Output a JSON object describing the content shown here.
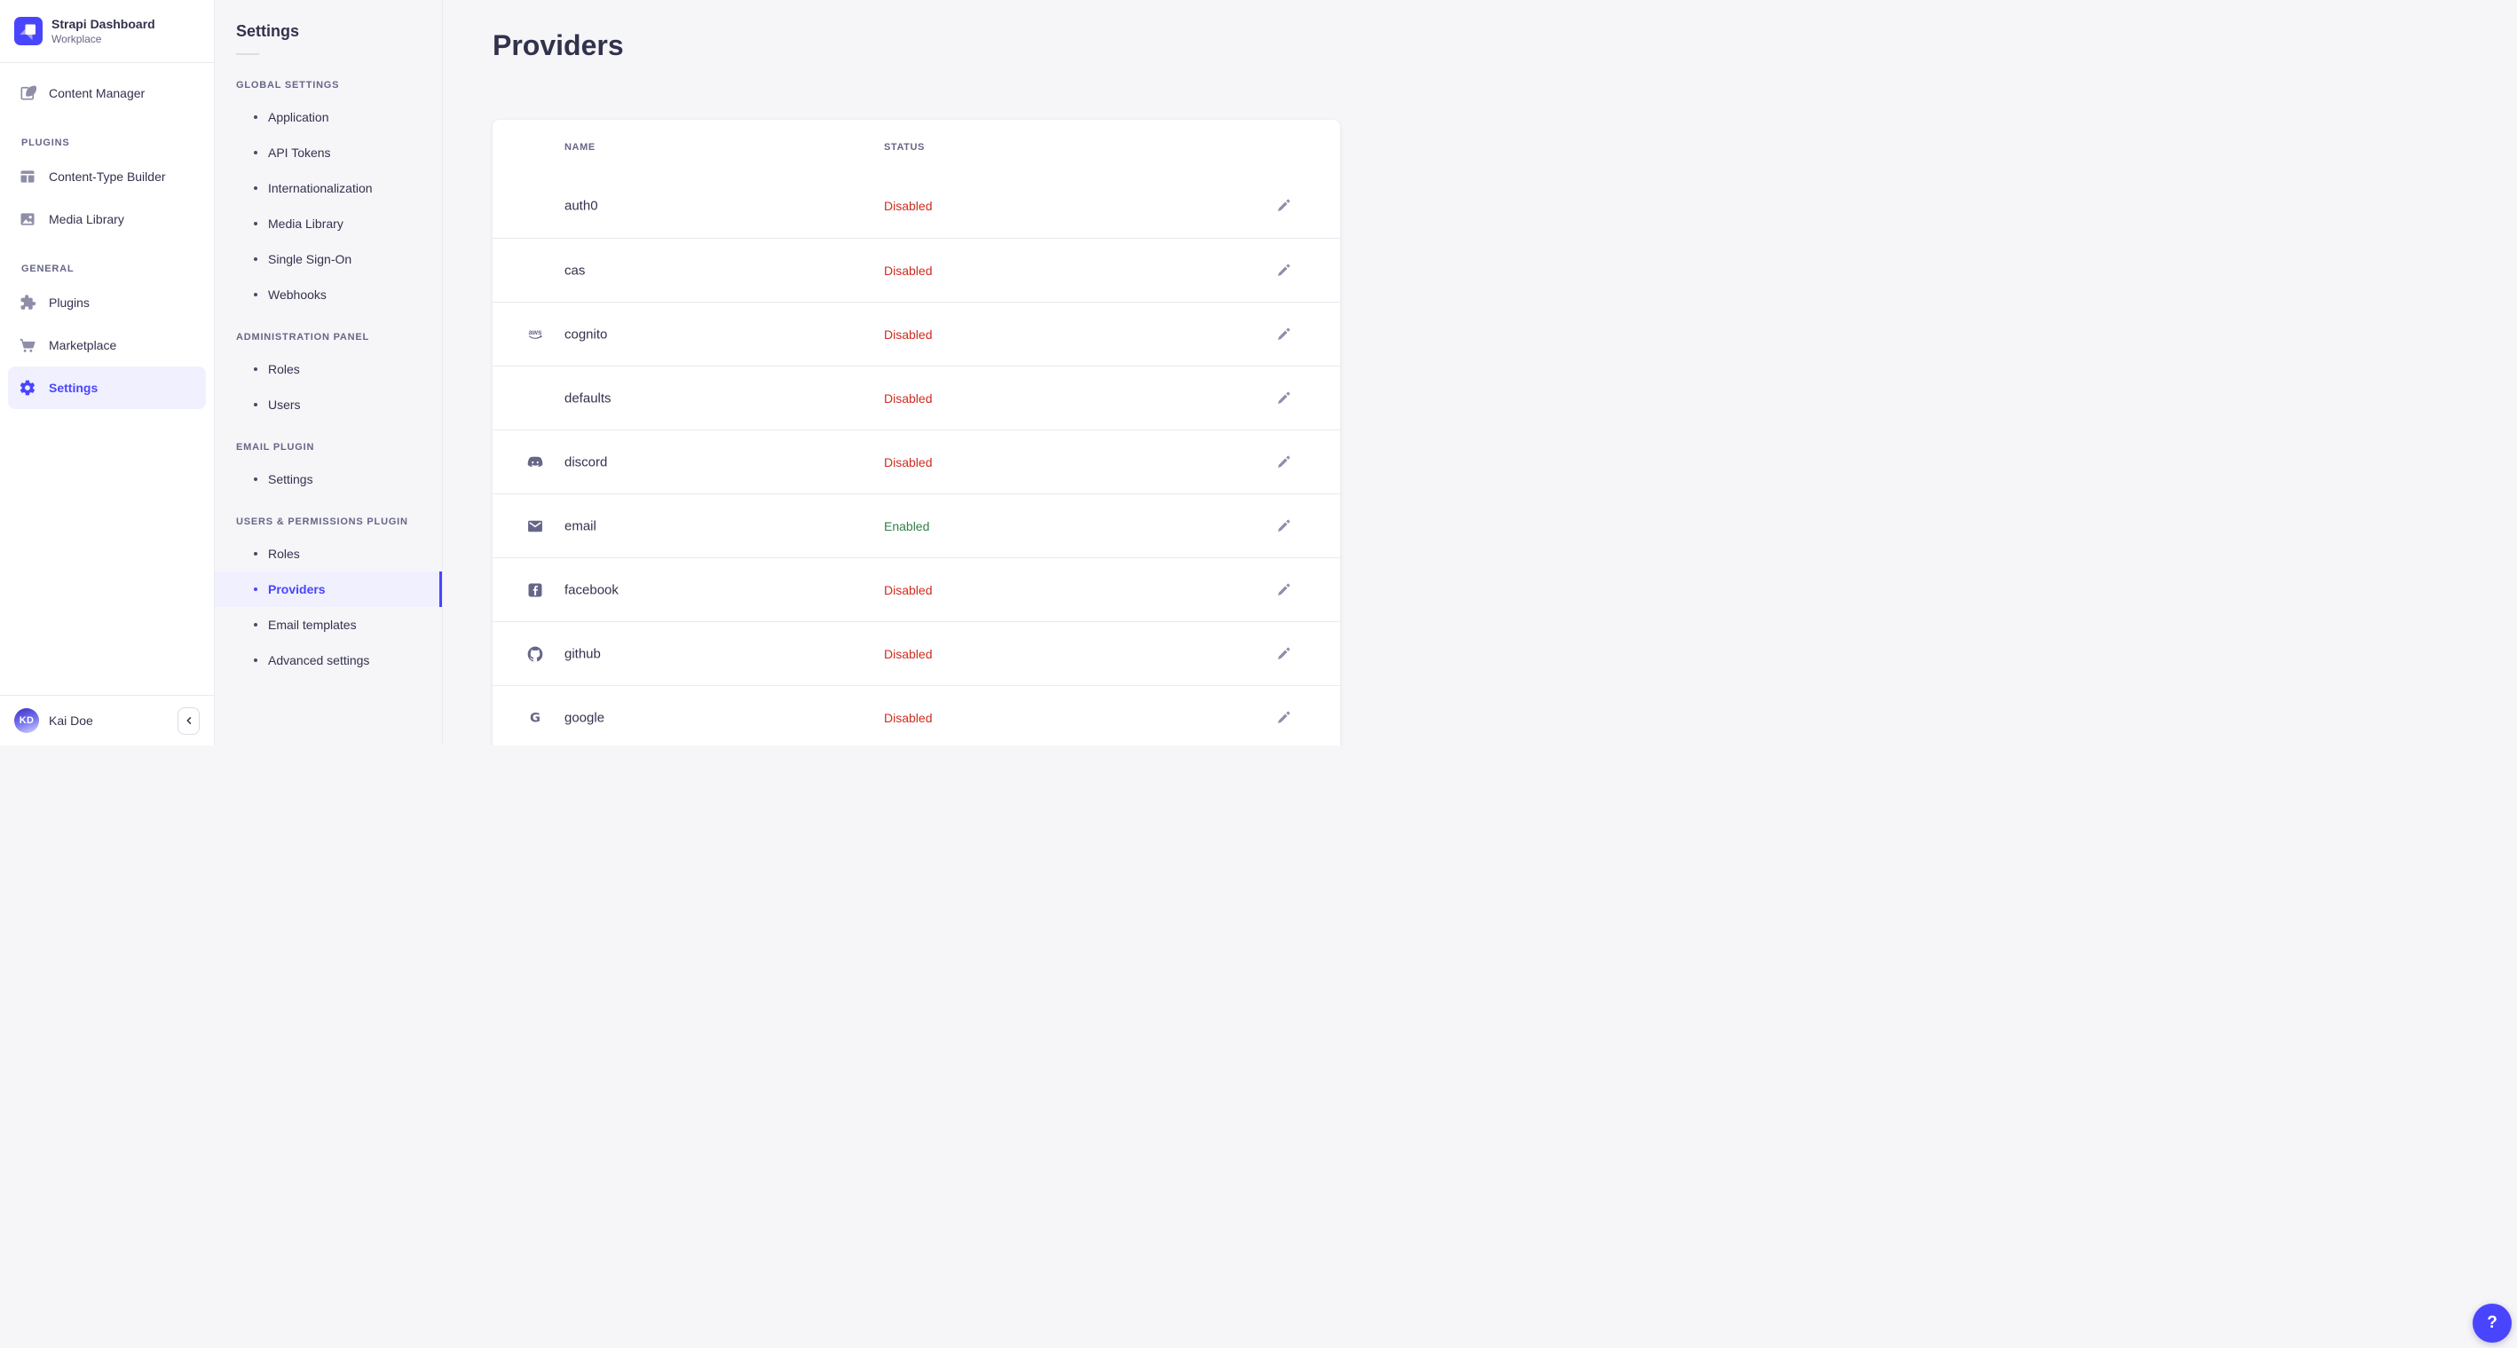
{
  "colors": {
    "primary": "#4945ff",
    "primary_light_bg": "#f0f0ff",
    "danger": "#d02b20",
    "success": "#328048",
    "text_dark": "#32324d",
    "text_muted": "#666687",
    "icon_muted": "#8e8ea9",
    "divider": "#eaeaef",
    "page_bg": "#f6f6f9"
  },
  "sidebar": {
    "app_name": "Strapi Dashboard",
    "workspace": "Workplace",
    "sections": [
      {
        "title": null,
        "items": [
          {
            "label": "Content Manager",
            "icon": "content-manager-icon",
            "active": false
          }
        ]
      },
      {
        "title": "PLUGINS",
        "items": [
          {
            "label": "Content-Type Builder",
            "icon": "content-type-builder-icon",
            "active": false
          },
          {
            "label": "Media Library",
            "icon": "media-library-icon",
            "active": false
          }
        ]
      },
      {
        "title": "GENERAL",
        "items": [
          {
            "label": "Plugins",
            "icon": "puzzle-icon",
            "active": false
          },
          {
            "label": "Marketplace",
            "icon": "cart-icon",
            "active": false
          },
          {
            "label": "Settings",
            "icon": "gear-icon",
            "active": true
          }
        ]
      }
    ],
    "user": {
      "initials": "KD",
      "name": "Kai Doe"
    }
  },
  "subnav": {
    "title": "Settings",
    "sections": [
      {
        "title": "GLOBAL SETTINGS",
        "items": [
          {
            "label": "Application",
            "active": false
          },
          {
            "label": "API Tokens",
            "active": false
          },
          {
            "label": "Internationalization",
            "active": false
          },
          {
            "label": "Media Library",
            "active": false
          },
          {
            "label": "Single Sign-On",
            "active": false
          },
          {
            "label": "Webhooks",
            "active": false
          }
        ]
      },
      {
        "title": "ADMINISTRATION PANEL",
        "items": [
          {
            "label": "Roles",
            "active": false
          },
          {
            "label": "Users",
            "active": false
          }
        ]
      },
      {
        "title": "EMAIL PLUGIN",
        "items": [
          {
            "label": "Settings",
            "active": false
          }
        ]
      },
      {
        "title": "USERS & PERMISSIONS PLUGIN",
        "items": [
          {
            "label": "Roles",
            "active": false
          },
          {
            "label": "Providers",
            "active": true
          },
          {
            "label": "Email templates",
            "active": false
          },
          {
            "label": "Advanced settings",
            "active": false
          }
        ]
      }
    ]
  },
  "main": {
    "title": "Providers",
    "table": {
      "columns": [
        "NAME",
        "STATUS"
      ],
      "rows": [
        {
          "name": "auth0",
          "icon": null,
          "status": "Disabled"
        },
        {
          "name": "cas",
          "icon": null,
          "status": "Disabled"
        },
        {
          "name": "cognito",
          "icon": "aws-icon",
          "status": "Disabled"
        },
        {
          "name": "defaults",
          "icon": null,
          "status": "Disabled"
        },
        {
          "name": "discord",
          "icon": "discord-icon",
          "status": "Disabled"
        },
        {
          "name": "email",
          "icon": "email-icon",
          "status": "Enabled"
        },
        {
          "name": "facebook",
          "icon": "facebook-icon",
          "status": "Disabled"
        },
        {
          "name": "github",
          "icon": "github-icon",
          "status": "Disabled"
        },
        {
          "name": "google",
          "icon": "google-icon",
          "status": "Disabled"
        }
      ]
    },
    "help_label": "?"
  }
}
